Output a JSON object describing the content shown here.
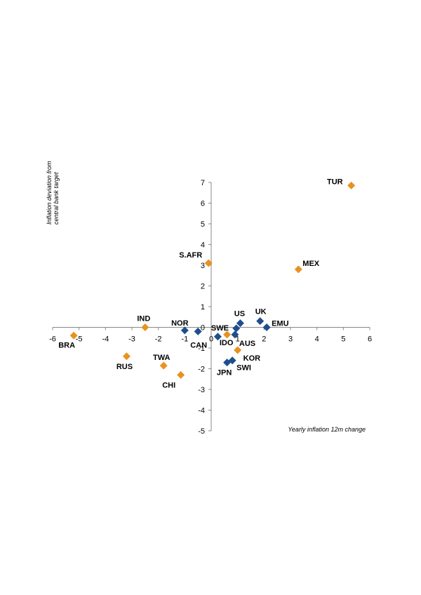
{
  "chart_data": {
    "type": "scatter",
    "xlabel": "Yearly inflation 12m change",
    "ylabel_lines": [
      "Inflation deviation from",
      "central bank target"
    ],
    "xlim": [
      -6,
      6
    ],
    "ylim": [
      -5,
      7
    ],
    "x_ticks": [
      -6,
      -5,
      -4,
      -3,
      -2,
      -1,
      0,
      1,
      2,
      3,
      4,
      5,
      6
    ],
    "y_ticks": [
      -5,
      -4,
      -3,
      -2,
      -1,
      0,
      1,
      2,
      3,
      4,
      5,
      6,
      7
    ],
    "grid": false,
    "colors": {
      "orange": "#e8921f",
      "blue": "#1f4e8c"
    },
    "points": [
      {
        "label": "TUR",
        "x": 5.3,
        "y": 6.85,
        "color": "orange"
      },
      {
        "label": "MEX",
        "x": 3.3,
        "y": 2.8,
        "color": "orange"
      },
      {
        "label": "S.AFR",
        "x": -0.1,
        "y": 3.1,
        "color": "orange"
      },
      {
        "label": "IND",
        "x": -2.5,
        "y": 0.0,
        "color": "orange"
      },
      {
        "label": "BRA",
        "x": -5.2,
        "y": -0.4,
        "color": "orange"
      },
      {
        "label": "RUS",
        "x": -3.2,
        "y": -1.4,
        "color": "orange"
      },
      {
        "label": "TWA",
        "x": -1.8,
        "y": -1.85,
        "color": "orange"
      },
      {
        "label": "CHI",
        "x": -1.15,
        "y": -2.3,
        "color": "orange"
      },
      {
        "label": "IDO",
        "x": 0.6,
        "y": -0.35,
        "color": "orange"
      },
      {
        "label": "KOR",
        "x": 1.0,
        "y": -1.1,
        "color": "orange"
      },
      {
        "label": "UK",
        "x": 1.85,
        "y": 0.3,
        "color": "blue"
      },
      {
        "label": "EMU",
        "x": 2.1,
        "y": 0.0,
        "color": "blue"
      },
      {
        "label": "US",
        "x": 1.1,
        "y": 0.2,
        "color": "blue"
      },
      {
        "label": "",
        "x": 0.95,
        "y": -0.05,
        "color": "blue"
      },
      {
        "label": "AUS",
        "x": 0.9,
        "y": -0.35,
        "color": "blue"
      },
      {
        "label": "SWE",
        "x": 0.25,
        "y": -0.45,
        "color": "blue"
      },
      {
        "label": "NOR",
        "x": -1.0,
        "y": -0.15,
        "color": "blue"
      },
      {
        "label": "CAN",
        "x": -0.5,
        "y": -0.2,
        "color": "blue"
      },
      {
        "label": "JPN",
        "x": 0.6,
        "y": -1.7,
        "color": "blue"
      },
      {
        "label": "SWI",
        "x": 0.8,
        "y": -1.6,
        "color": "blue"
      }
    ]
  }
}
